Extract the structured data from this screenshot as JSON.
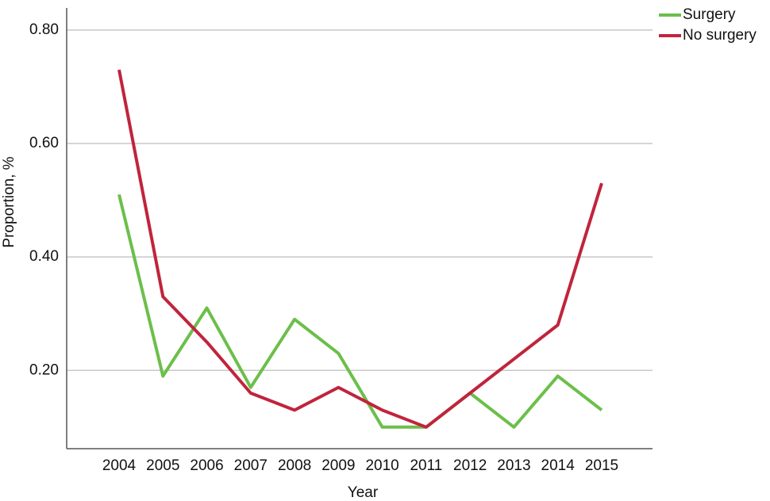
{
  "chart_data": {
    "type": "line",
    "x_label": "Year",
    "y_label": "Proportion, %",
    "categories": [
      "2004",
      "2005",
      "2006",
      "2007",
      "2008",
      "2009",
      "2010",
      "2011",
      "2012",
      "2013",
      "2014",
      "2015"
    ],
    "series": [
      {
        "name": "Surgery",
        "color": "#6cbf4a",
        "values": [
          0.51,
          0.19,
          0.31,
          0.17,
          0.29,
          0.23,
          0.1,
          0.1,
          0.16,
          0.1,
          0.19,
          0.13
        ]
      },
      {
        "name": "No surgery",
        "color": "#c0243c",
        "values": [
          0.73,
          0.33,
          0.25,
          0.16,
          0.13,
          0.17,
          0.13,
          0.1,
          0.16,
          0.22,
          0.28,
          0.53
        ]
      }
    ],
    "ylim": [
      0.062,
      0.839
    ],
    "yticks": [
      {
        "value": 0.2,
        "label": "0.20"
      },
      {
        "value": 0.4,
        "label": "0.40"
      },
      {
        "value": 0.6,
        "label": "0.60"
      },
      {
        "value": 0.8,
        "label": "0.80"
      }
    ],
    "grid": true,
    "legend": "top-right"
  }
}
